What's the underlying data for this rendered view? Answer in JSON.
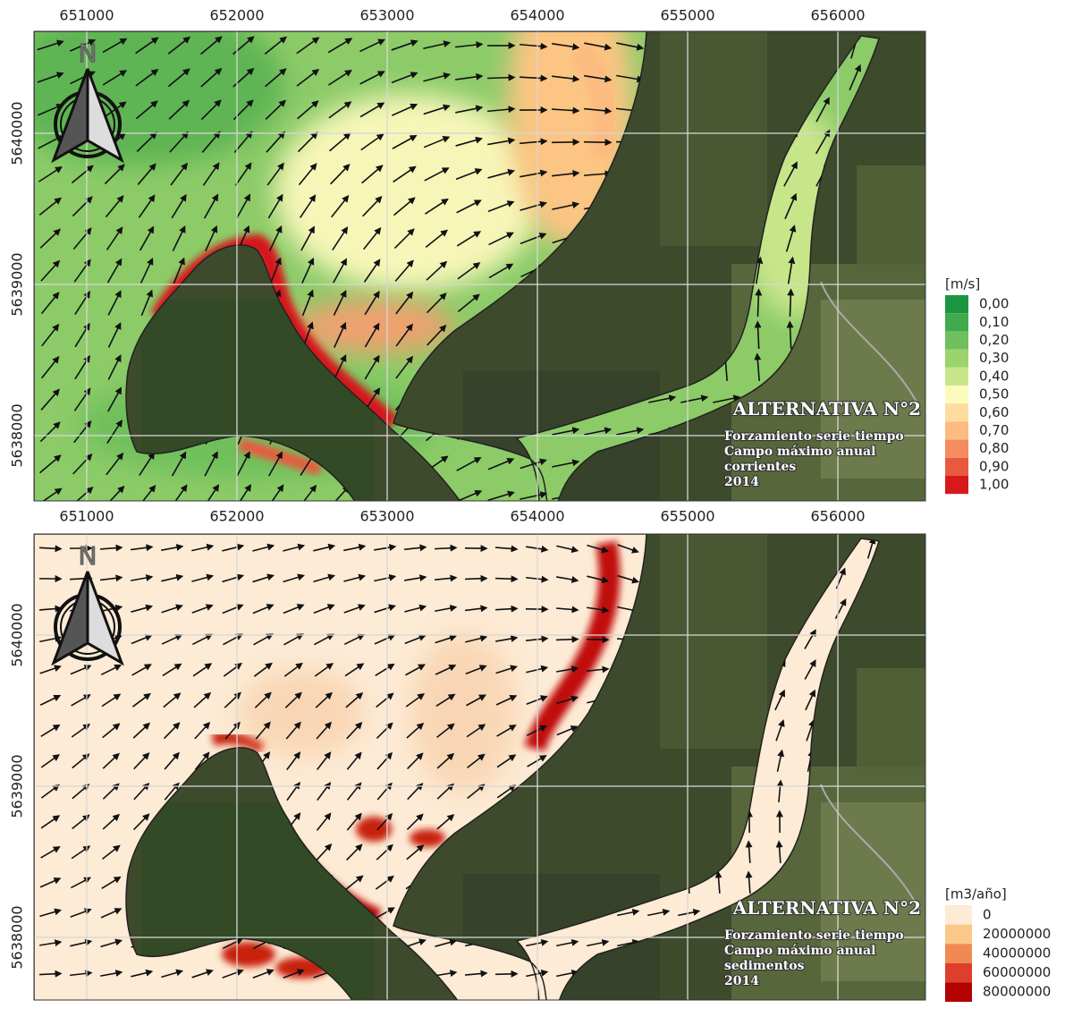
{
  "panels": [
    {
      "variable": "corrientes",
      "x_ticks": [
        651000,
        652000,
        653000,
        654000,
        655000,
        656000
      ],
      "y_ticks": [
        5640000,
        5639000,
        5638000
      ],
      "xlim": [
        650649,
        656583
      ],
      "ylim": [
        5637568,
        5640675
      ],
      "north_label": "N",
      "legend": {
        "title": "[m/s]",
        "items": [
          {
            "label": "0,00",
            "color": "#1a9641"
          },
          {
            "label": "0,10",
            "color": "#3fab4c"
          },
          {
            "label": "0,20",
            "color": "#6fbf5c"
          },
          {
            "label": "0,30",
            "color": "#9bd36c"
          },
          {
            "label": "0,40",
            "color": "#c7e68a"
          },
          {
            "label": "0,50",
            "color": "#fbfbbd"
          },
          {
            "label": "0,60",
            "color": "#fddca0"
          },
          {
            "label": "0,70",
            "color": "#fcbb80"
          },
          {
            "label": "0,80",
            "color": "#f48c5e"
          },
          {
            "label": "0,90",
            "color": "#e85a3f"
          },
          {
            "label": "1,00",
            "color": "#d7191c"
          }
        ]
      },
      "annotation": {
        "title": "ALTERNATIVA N°2",
        "lines": [
          "Forzamiento serie tiempo",
          "Campo máximo anual",
          "corrientes",
          "2014"
        ]
      }
    },
    {
      "variable": "sedimentos",
      "x_ticks": [
        651000,
        652000,
        653000,
        654000,
        655000,
        656000
      ],
      "y_ticks": [
        5640000,
        5639000,
        5638000
      ],
      "xlim": [
        650649,
        656583
      ],
      "ylim": [
        5637586,
        5640669
      ],
      "north_label": "N",
      "legend": {
        "title": "[m3/año]",
        "items": [
          {
            "label": "0",
            "color": "#fdebd5"
          },
          {
            "label": "20000000",
            "color": "#fbc88a"
          },
          {
            "label": "40000000",
            "color": "#f08a52"
          },
          {
            "label": "60000000",
            "color": "#dd3f2a"
          },
          {
            "label": "80000000",
            "color": "#b30000"
          }
        ]
      },
      "annotation": {
        "title": "ALTERNATIVA N°2",
        "lines": [
          "Forzamiento serie tiempo",
          "Campo máximo anual",
          "sedimentos",
          "2014"
        ]
      }
    }
  ]
}
